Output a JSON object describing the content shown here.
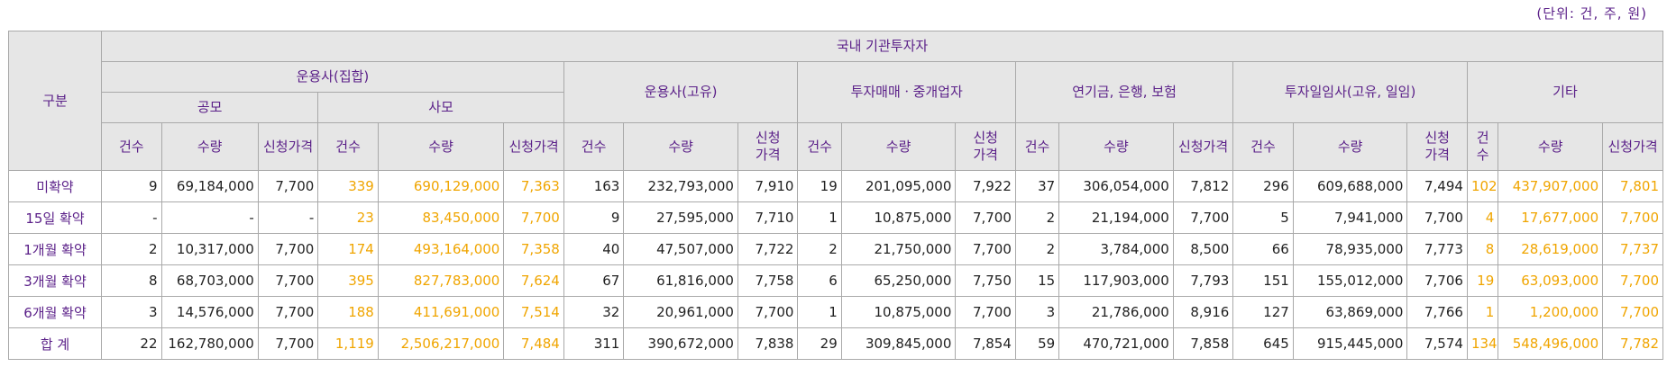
{
  "unit_note": "(단위: 건, 주, 원)",
  "table": {
    "row_header_label": "구분",
    "top_group": "국내 기관투자자",
    "groups": [
      {
        "label": "운용사(집합)",
        "subgroups": [
          "공모",
          "사모"
        ]
      },
      {
        "label": "운용사(고유)"
      },
      {
        "label": "투자매매ㆍ중개업자"
      },
      {
        "label": "연기금, 은행, 보험"
      },
      {
        "label": "투자일임사(고유, 일임)"
      },
      {
        "label": "기타"
      }
    ],
    "col_labels": {
      "count": "건수",
      "quantity": "수량",
      "bid_price": "신청가격",
      "bid_price_split": "신청\n가격",
      "count_split": "건\n수"
    },
    "rows": [
      {
        "label": "미확약",
        "cells": [
          "9",
          "69,184,000",
          "7,700",
          "339",
          "690,129,000",
          "7,363",
          "163",
          "232,793,000",
          "7,910",
          "19",
          "201,095,000",
          "7,922",
          "37",
          "306,054,000",
          "7,812",
          "296",
          "609,688,000",
          "7,494",
          "102",
          "437,907,000",
          "7,801"
        ]
      },
      {
        "label": "15일 확약",
        "cells": [
          "-",
          "-",
          "-",
          "23",
          "83,450,000",
          "7,700",
          "9",
          "27,595,000",
          "7,710",
          "1",
          "10,875,000",
          "7,700",
          "2",
          "21,194,000",
          "7,700",
          "5",
          "7,941,000",
          "7,700",
          "4",
          "17,677,000",
          "7,700"
        ]
      },
      {
        "label": "1개월 확약",
        "cells": [
          "2",
          "10,317,000",
          "7,700",
          "174",
          "493,164,000",
          "7,358",
          "40",
          "47,507,000",
          "7,722",
          "2",
          "21,750,000",
          "7,700",
          "2",
          "3,784,000",
          "8,500",
          "66",
          "78,935,000",
          "7,773",
          "8",
          "28,619,000",
          "7,737"
        ]
      },
      {
        "label": "3개월 확약",
        "cells": [
          "8",
          "68,703,000",
          "7,700",
          "395",
          "827,783,000",
          "7,624",
          "67",
          "61,816,000",
          "7,758",
          "6",
          "65,250,000",
          "7,750",
          "15",
          "117,903,000",
          "7,793",
          "151",
          "155,012,000",
          "7,706",
          "19",
          "63,093,000",
          "7,700"
        ]
      },
      {
        "label": "6개월 확약",
        "cells": [
          "3",
          "14,576,000",
          "7,700",
          "188",
          "411,691,000",
          "7,514",
          "32",
          "20,961,000",
          "7,700",
          "1",
          "10,875,000",
          "7,700",
          "3",
          "21,786,000",
          "8,916",
          "127",
          "63,869,000",
          "7,766",
          "1",
          "1,200,000",
          "7,700"
        ]
      },
      {
        "label": "합 계",
        "cells": [
          "22",
          "162,780,000",
          "7,700",
          "1,119",
          "2,506,217,000",
          "7,484",
          "311",
          "390,672,000",
          "7,838",
          "29",
          "309,845,000",
          "7,854",
          "59",
          "470,721,000",
          "7,858",
          "645",
          "915,445,000",
          "7,574",
          "134",
          "548,496,000",
          "7,782"
        ]
      }
    ],
    "highlight_color": "#f0a500",
    "header_text_color": "#5a1f88",
    "header_bg_color": "#e6e6e6"
  }
}
